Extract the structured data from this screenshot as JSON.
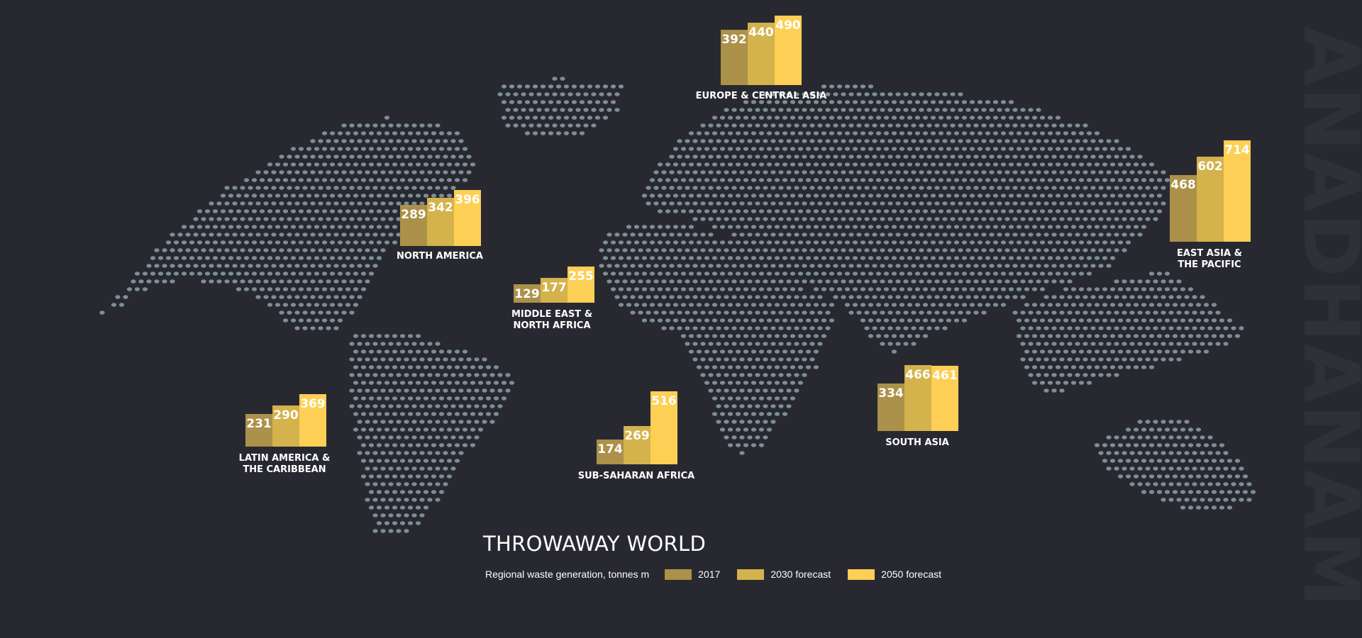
{
  "chart_data": {
    "type": "bar",
    "title": "THROWAWAY WORLD",
    "subtitle": "Regional waste generation, tonnes m",
    "legend": [
      "2017",
      "2030 forecast",
      "2050 forecast"
    ],
    "series_colors": [
      "#ab9149",
      "#d4b24c",
      "#fdcf55"
    ],
    "regions": [
      {
        "name": "EUROPE & CENTRAL ASIA",
        "values": [
          392,
          440,
          490
        ]
      },
      {
        "name": "NORTH AMERICA",
        "values": [
          289,
          342,
          396
        ]
      },
      {
        "name": "MIDDLE EAST & NORTH AFRICA",
        "values": [
          129,
          177,
          255
        ]
      },
      {
        "name": "EAST ASIA & THE PACIFIC",
        "values": [
          468,
          602,
          714
        ]
      },
      {
        "name": "LATIN AMERICA & THE CARIBBEAN",
        "values": [
          231,
          290,
          369
        ]
      },
      {
        "name": "SUB-SAHARAN AFRICA",
        "values": [
          174,
          269,
          516
        ]
      },
      {
        "name": "SOUTH ASIA",
        "values": [
          334,
          466,
          461
        ]
      }
    ]
  },
  "brand": "ANADHANAM",
  "map_dot_color": "#7d8e96"
}
